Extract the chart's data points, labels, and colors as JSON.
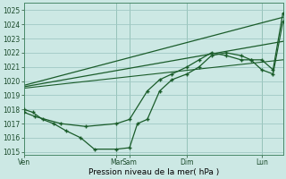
{
  "bg_color": "#cce8e4",
  "grid_color": "#a0c8c4",
  "line_color": "#1a5c2a",
  "ylim": [
    1014.8,
    1025.5
  ],
  "yticks": [
    1015,
    1016,
    1017,
    1018,
    1019,
    1020,
    1021,
    1022,
    1023,
    1024,
    1025
  ],
  "xlabel": "Pression niveau de la mer( hPa )",
  "day_labels": [
    "Ven",
    "Mar",
    "Sam",
    "Dim",
    "Lun"
  ],
  "day_x": [
    0.0,
    3.75,
    4.28,
    6.61,
    9.64
  ],
  "xlim": [
    0.0,
    10.5
  ],
  "series1_x": [
    0.0,
    0.35,
    0.75,
    1.2,
    1.7,
    2.3,
    2.85,
    3.75,
    4.28,
    4.6,
    5.0,
    5.5,
    6.0,
    6.61,
    7.1,
    7.6,
    8.2,
    8.8,
    9.2,
    9.64,
    10.1,
    10.5
  ],
  "series1_y": [
    1018.0,
    1017.8,
    1017.3,
    1017.0,
    1016.5,
    1016.0,
    1015.2,
    1015.2,
    1015.3,
    1017.0,
    1017.3,
    1019.3,
    1020.1,
    1020.5,
    1021.0,
    1021.8,
    1022.0,
    1021.8,
    1021.5,
    1021.5,
    1020.8,
    1024.8
  ],
  "series2_x": [
    0.0,
    0.45,
    1.5,
    2.5,
    3.75,
    4.28,
    5.0,
    5.5,
    6.0,
    6.61,
    7.1,
    7.6,
    8.2,
    8.8,
    9.2,
    9.64,
    10.1,
    10.5
  ],
  "series2_y": [
    1017.8,
    1017.5,
    1017.0,
    1016.8,
    1017.0,
    1017.3,
    1019.3,
    1020.1,
    1020.5,
    1021.0,
    1021.5,
    1022.0,
    1021.8,
    1021.5,
    1021.5,
    1020.8,
    1020.5,
    1024.2
  ],
  "trend1_x": [
    0.0,
    10.5
  ],
  "trend1_y": [
    1019.7,
    1024.5
  ],
  "trend2_x": [
    0.0,
    10.5
  ],
  "trend2_y": [
    1019.6,
    1022.8
  ],
  "trend3_x": [
    0.0,
    10.5
  ],
  "trend3_y": [
    1019.5,
    1021.5
  ]
}
